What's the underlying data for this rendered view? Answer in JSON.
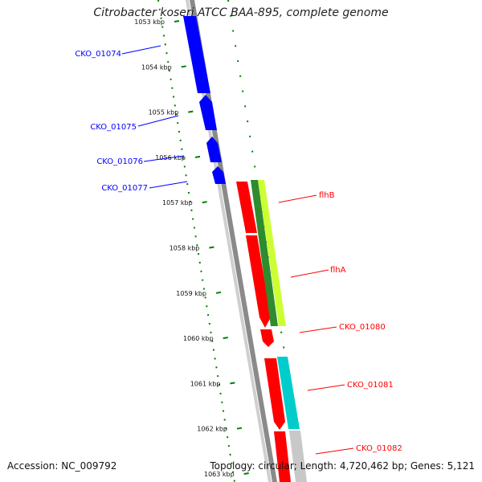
{
  "header": {
    "title": "Citrobacter koseri ATCC BAA-895, complete genome"
  },
  "footer": {
    "accession": "Accession: NC_009792",
    "summary": "Topology: circular; Length: 4,720,462 bp; Genes: 5,121"
  },
  "ruler": {
    "ticks": [
      "1053 kbp",
      "1054 kbp",
      "1055 kbp",
      "1056 kbp",
      "1057 kbp",
      "1058 kbp",
      "1059 kbp",
      "1060 kbp",
      "1061 kbp",
      "1062 kbp",
      "1063 kbp"
    ]
  },
  "colors": {
    "reverse_strand_genes": "#0000ff",
    "forward_strand_genes": "#ff0000",
    "backbone": "#808080",
    "tick_marks": "#008000",
    "flhA_overlay": "#ccff33",
    "flhA_overlay_dark": "#2e8b2e",
    "cko_01081_overlay": "#00cccc",
    "cko_01082_overlay": "#c8c8c8"
  },
  "genes": [
    {
      "id": "cko_01074",
      "label": "CKO_01074",
      "strand": "reverse"
    },
    {
      "id": "cko_01075",
      "label": "CKO_01075",
      "strand": "reverse"
    },
    {
      "id": "cko_01076",
      "label": "CKO_01076",
      "strand": "reverse"
    },
    {
      "id": "cko_01077",
      "label": "CKO_01077",
      "strand": "reverse"
    },
    {
      "id": "flhb",
      "label": "flhB",
      "strand": "forward"
    },
    {
      "id": "flha",
      "label": "flhA",
      "strand": "forward"
    },
    {
      "id": "cko_01080",
      "label": "CKO_01080",
      "strand": "forward"
    },
    {
      "id": "cko_01081",
      "label": "CKO_01081",
      "strand": "forward"
    },
    {
      "id": "cko_01082",
      "label": "CKO_01082",
      "strand": "forward"
    }
  ]
}
